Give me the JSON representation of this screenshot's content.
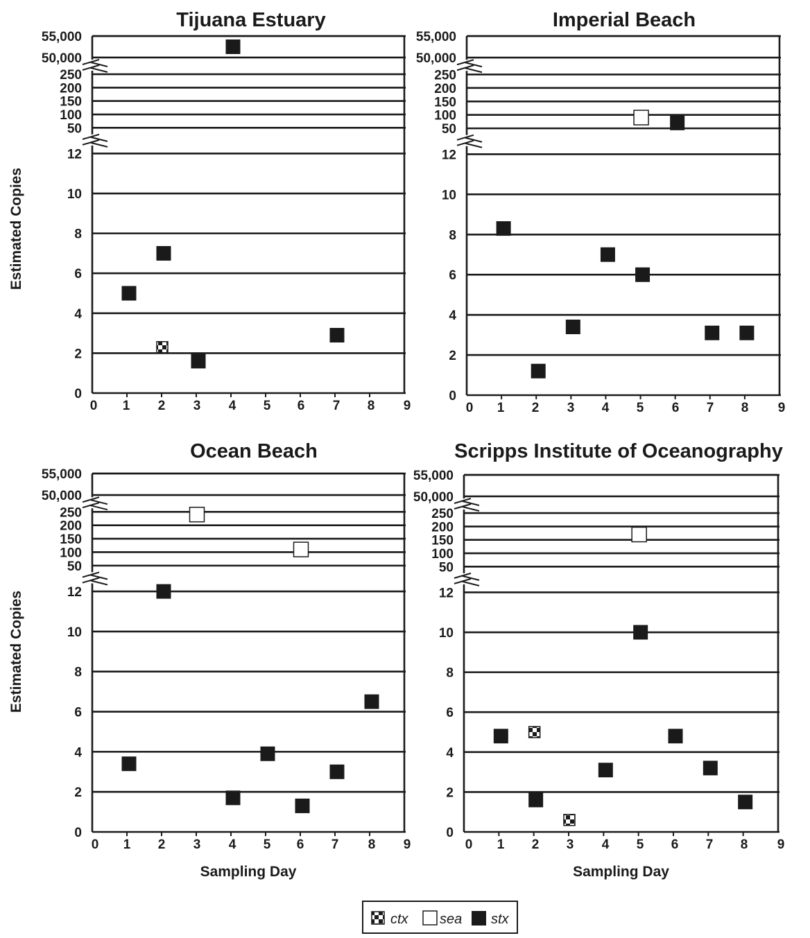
{
  "legend": [
    {
      "label": "ctx",
      "style": "checker"
    },
    {
      "label": "sea",
      "style": "white"
    },
    {
      "label": "stx",
      "style": "black"
    }
  ],
  "colors": {
    "ink": "#1a1a1a",
    "background": "#ffffff"
  },
  "chart_data": [
    {
      "type": "scatter",
      "title": "Tijuana Estuary",
      "xlabel": "",
      "ylabel": "Estimated Copies",
      "xlim": [
        0,
        9
      ],
      "x_ticks": [
        "0",
        "1",
        "2",
        "3",
        "4",
        "5",
        "6",
        "7",
        "8",
        "9"
      ],
      "y_scale": "broken (0–12 linear; break; 50–250; break; 50,000–55,000)",
      "y_tick_labels": [
        "0",
        "2",
        "4",
        "6",
        "8",
        "10",
        "12",
        "50",
        "100",
        "150",
        "200",
        "250",
        "50,000",
        "55,000"
      ],
      "grid": true,
      "series": [
        {
          "name": "ctx",
          "x": [
            2
          ],
          "y": [
            2.3
          ]
        },
        {
          "name": "sea",
          "x": [],
          "y": []
        },
        {
          "name": "stx",
          "x": [
            1,
            2,
            3,
            4,
            7
          ],
          "y": [
            5,
            7,
            1.6,
            52500,
            2.9
          ]
        }
      ]
    },
    {
      "type": "scatter",
      "title": "Imperial Beach",
      "xlabel": "",
      "ylabel": "",
      "xlim": [
        0,
        9
      ],
      "x_ticks": [
        "0",
        "1",
        "2",
        "3",
        "4",
        "5",
        "6",
        "7",
        "8",
        "9"
      ],
      "y_scale": "broken (0–12 linear; break; 50–250; break; 50,000–55,000)",
      "y_tick_labels": [
        "0",
        "2",
        "4",
        "6",
        "8",
        "10",
        "12",
        "50",
        "100",
        "150",
        "200",
        "250",
        "50,000",
        "55,000"
      ],
      "grid": true,
      "series": [
        {
          "name": "ctx",
          "x": [],
          "y": []
        },
        {
          "name": "sea",
          "x": [
            5
          ],
          "y": [
            90
          ]
        },
        {
          "name": "stx",
          "x": [
            1,
            2,
            3,
            4,
            5,
            6,
            7,
            8
          ],
          "y": [
            8.3,
            1.2,
            3.4,
            7,
            6,
            70,
            3.1,
            3.1
          ]
        }
      ]
    },
    {
      "type": "scatter",
      "title": "Ocean Beach",
      "xlabel": "Sampling Day",
      "ylabel": "Estimated Copies",
      "xlim": [
        0,
        9
      ],
      "x_ticks": [
        "0",
        "1",
        "2",
        "3",
        "4",
        "5",
        "6",
        "7",
        "8",
        "9"
      ],
      "y_scale": "broken (0–12 linear; break; 50–250; break; 50,000–55,000)",
      "y_tick_labels": [
        "0",
        "2",
        "4",
        "6",
        "8",
        "10",
        "12",
        "50",
        "100",
        "150",
        "200",
        "250",
        "50,000",
        "55,000"
      ],
      "grid": true,
      "series": [
        {
          "name": "ctx",
          "x": [],
          "y": []
        },
        {
          "name": "sea",
          "x": [
            3,
            6
          ],
          "y": [
            240,
            110
          ]
        },
        {
          "name": "stx",
          "x": [
            1,
            2,
            4,
            5,
            6,
            7,
            8
          ],
          "y": [
            3.4,
            12,
            1.7,
            3.9,
            1.3,
            3,
            6.5
          ]
        }
      ]
    },
    {
      "type": "scatter",
      "title": "Scripps Institute of Oceanography",
      "xlabel": "Sampling Day",
      "ylabel": "",
      "xlim": [
        0,
        9
      ],
      "x_ticks": [
        "0",
        "1",
        "2",
        "3",
        "4",
        "5",
        "6",
        "7",
        "8",
        "9"
      ],
      "y_scale": "broken (0–12 linear; break; 50–250; break; 50,000–55,000)",
      "y_tick_labels": [
        "0",
        "2",
        "4",
        "6",
        "8",
        "10",
        "12",
        "50",
        "100",
        "150",
        "200",
        "250",
        "50,000",
        "55,000"
      ],
      "grid": true,
      "series": [
        {
          "name": "ctx",
          "x": [
            2,
            3
          ],
          "y": [
            5,
            0.6
          ]
        },
        {
          "name": "sea",
          "x": [
            5
          ],
          "y": [
            170
          ]
        },
        {
          "name": "stx",
          "x": [
            1,
            2,
            4,
            5,
            6,
            7,
            8
          ],
          "y": [
            4.8,
            1.6,
            3.1,
            10,
            4.8,
            3.2,
            1.5
          ]
        }
      ]
    }
  ]
}
